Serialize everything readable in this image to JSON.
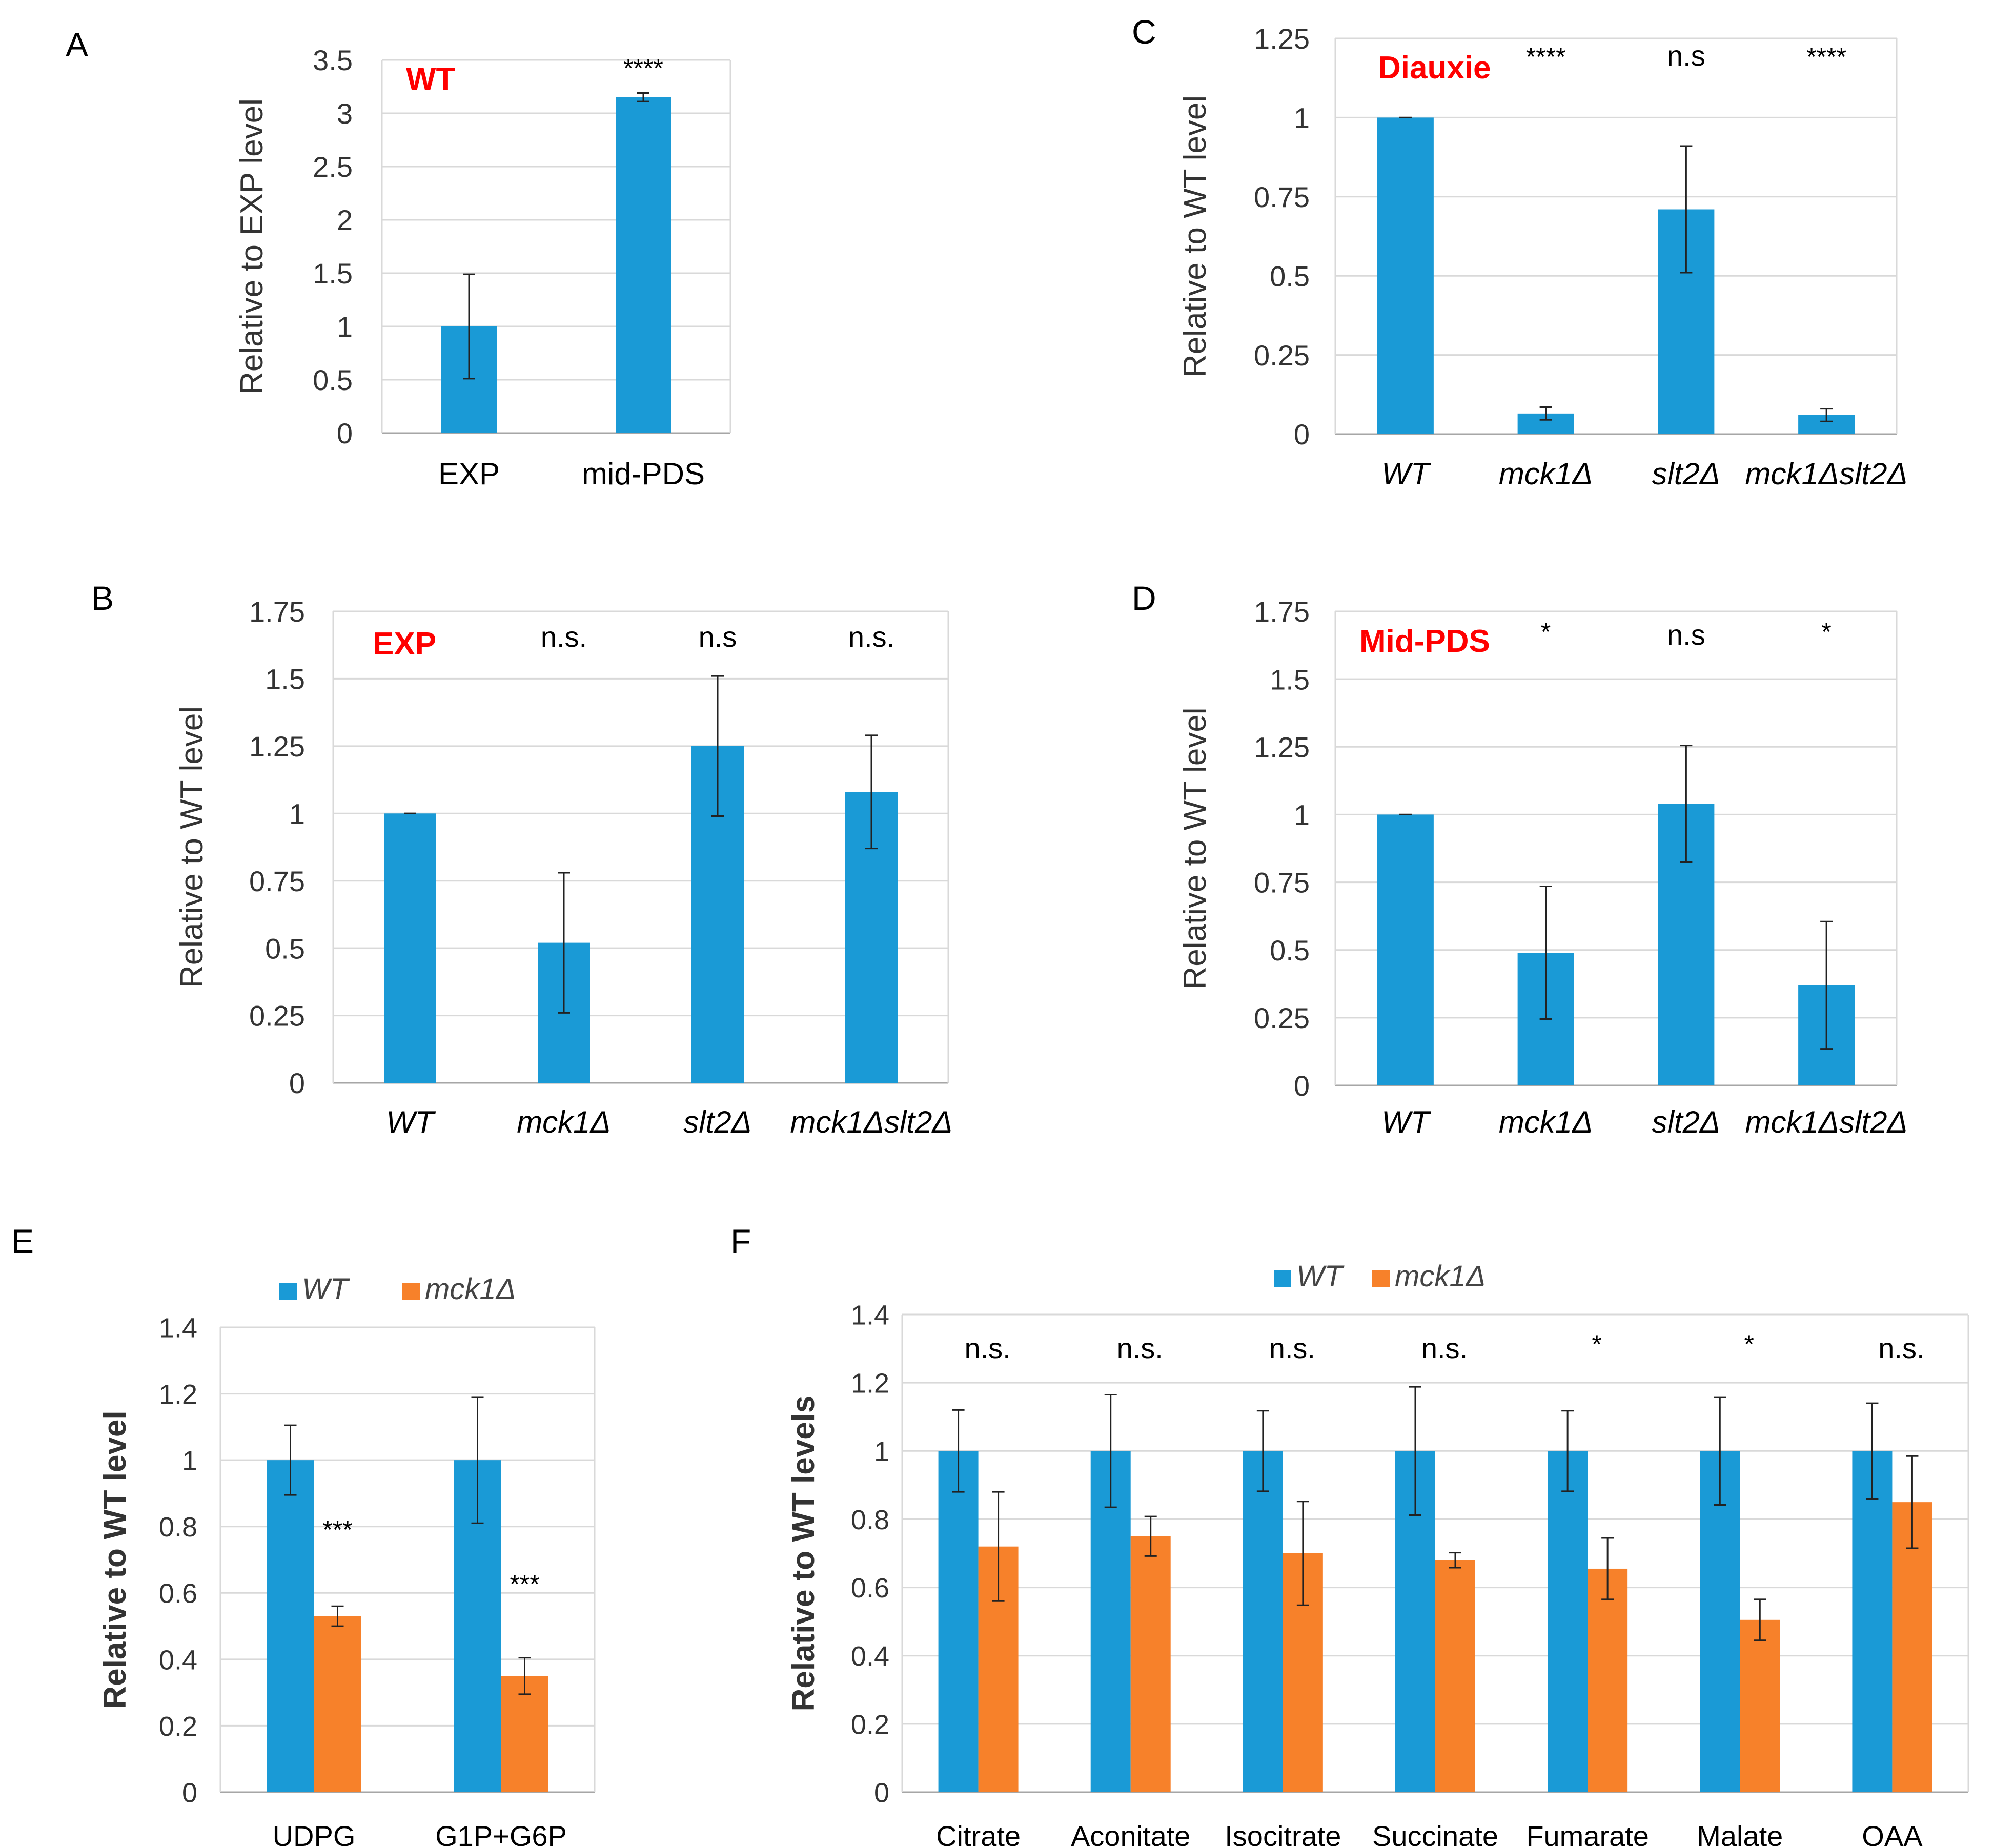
{
  "figure": {
    "colors": {
      "wt": "#1a9ad6",
      "mck1": "#f7812a",
      "sig_label": "#ff0000",
      "grid": "#d9d9d9",
      "axis": "#a6a6a6",
      "text": "#333333"
    }
  },
  "chart_data": [
    {
      "id": "A",
      "panel_label": "A",
      "type": "bar",
      "categories": [
        "EXP",
        "mid-PDS"
      ],
      "series": [
        {
          "name": "WT",
          "values": [
            1.0,
            3.15
          ],
          "errors": [
            0.49,
            0.04
          ]
        }
      ],
      "ylabel": "Relative to EXP level",
      "ylim": [
        0,
        3.5
      ],
      "yticks": [
        "0",
        "0.5",
        "1",
        "1.5",
        "2",
        "2.5",
        "3",
        "3.5"
      ],
      "condition": "WT",
      "significance": [
        "",
        "****"
      ]
    },
    {
      "id": "B",
      "panel_label": "B",
      "type": "bar",
      "categories": [
        "WT",
        "mck1Δ",
        "slt2Δ",
        "mck1Δslt2Δ"
      ],
      "series": [
        {
          "name": "EXP",
          "values": [
            1.0,
            0.52,
            1.25,
            1.08
          ],
          "errors": [
            0.0,
            0.26,
            0.26,
            0.21
          ]
        }
      ],
      "ylabel": "Relative to WT level",
      "ylim": [
        0,
        1.75
      ],
      "yticks": [
        "0",
        "0.25",
        "0.5",
        "0.75",
        "1",
        "1.25",
        "1.5",
        "1.75"
      ],
      "condition": "EXP",
      "significance": [
        "",
        "n.s.",
        "n.s",
        "n.s."
      ]
    },
    {
      "id": "C",
      "panel_label": "C",
      "type": "bar",
      "categories": [
        "WT",
        "mck1Δ",
        "slt2Δ",
        "mck1Δslt2Δ"
      ],
      "series": [
        {
          "name": "Diauxie",
          "values": [
            1.0,
            0.065,
            0.71,
            0.06
          ],
          "errors": [
            0.0,
            0.02,
            0.2,
            0.02
          ]
        }
      ],
      "ylabel": "Relative to WT level",
      "ylim": [
        0,
        1.25
      ],
      "yticks": [
        "0",
        "0.25",
        "0.5",
        "0.75",
        "1",
        "1.25"
      ],
      "condition": "Diauxie",
      "significance": [
        "",
        "****",
        "n.s",
        "****"
      ]
    },
    {
      "id": "D",
      "panel_label": "D",
      "type": "bar",
      "categories": [
        "WT",
        "mck1Δ",
        "slt2Δ",
        "mck1Δslt2Δ"
      ],
      "series": [
        {
          "name": "Mid-PDS",
          "values": [
            1.0,
            0.49,
            1.04,
            0.37
          ],
          "errors": [
            0.0,
            0.245,
            0.215,
            0.235
          ]
        }
      ],
      "ylabel": "Relative to WT level",
      "ylim": [
        0,
        1.75
      ],
      "yticks": [
        "0",
        "0.25",
        "0.5",
        "0.75",
        "1",
        "1.25",
        "1.5",
        "1.75"
      ],
      "condition": "Mid-PDS",
      "significance": [
        "",
        "*",
        "n.s",
        "*"
      ]
    },
    {
      "id": "E",
      "panel_label": "E",
      "type": "bar",
      "categories": [
        "UDPG",
        "G1P+G6P"
      ],
      "series": [
        {
          "name": "WT",
          "values": [
            1.0,
            1.0
          ],
          "errors": [
            0.105,
            0.19
          ]
        },
        {
          "name": "mck1Δ",
          "values": [
            0.53,
            0.35
          ],
          "errors": [
            0.03,
            0.055
          ]
        }
      ],
      "ylabel": "Relative to WT level",
      "ylim": [
        0,
        1.4
      ],
      "yticks": [
        "0",
        "0.2",
        "0.4",
        "0.6",
        "0.8",
        "1",
        "1.2",
        "1.4"
      ],
      "legend": [
        "WT",
        "mck1Δ"
      ],
      "significance": [
        "***",
        "***"
      ]
    },
    {
      "id": "F",
      "panel_label": "F",
      "type": "bar",
      "categories": [
        "Citrate",
        "Aconitate",
        "Isocitrate",
        "Succinate",
        "Fumarate",
        "Malate",
        "OAA"
      ],
      "series": [
        {
          "name": "WT",
          "values": [
            1.0,
            1.0,
            1.0,
            1.0,
            1.0,
            1.0,
            1.0
          ],
          "errors": [
            0.12,
            0.165,
            0.118,
            0.188,
            0.118,
            0.158,
            0.14
          ]
        },
        {
          "name": "mck1Δ",
          "values": [
            0.72,
            0.75,
            0.7,
            0.68,
            0.655,
            0.505,
            0.85
          ],
          "errors": [
            0.16,
            0.058,
            0.152,
            0.022,
            0.09,
            0.06,
            0.135
          ]
        }
      ],
      "ylabel": "Relative to WT levels",
      "ylim": [
        0,
        1.4
      ],
      "yticks": [
        "0",
        "0.2",
        "0.4",
        "0.6",
        "0.8",
        "1",
        "1.2",
        "1.4"
      ],
      "legend": [
        "WT",
        "mck1Δ"
      ],
      "significance": [
        "n.s.",
        "n.s.",
        "n.s.",
        "n.s.",
        "*",
        "*",
        "n.s."
      ]
    }
  ]
}
